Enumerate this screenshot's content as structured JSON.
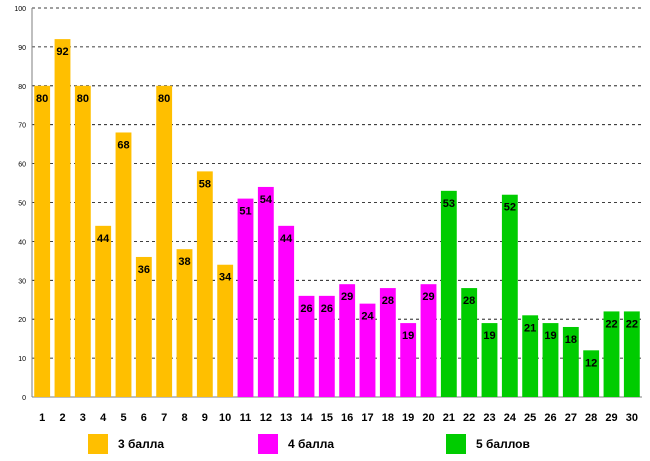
{
  "chart_data": {
    "type": "bar",
    "title": "",
    "xlabel": "",
    "ylabel": "",
    "ylim": [
      0,
      100
    ],
    "yticks": [
      0,
      10,
      20,
      30,
      40,
      50,
      60,
      70,
      80,
      90,
      100
    ],
    "grid": true,
    "categories": [
      "1",
      "2",
      "3",
      "4",
      "5",
      "6",
      "7",
      "8",
      "9",
      "10",
      "11",
      "12",
      "13",
      "14",
      "15",
      "16",
      "17",
      "18",
      "19",
      "20",
      "21",
      "22",
      "23",
      "24",
      "25",
      "26",
      "27",
      "28",
      "29",
      "30"
    ],
    "values": [
      80,
      92,
      80,
      44,
      68,
      36,
      80,
      38,
      58,
      34,
      51,
      54,
      44,
      26,
      26,
      29,
      24,
      28,
      19,
      29,
      53,
      28,
      19,
      52,
      21,
      19,
      18,
      12,
      22,
      22
    ],
    "groups": [
      0,
      0,
      0,
      0,
      0,
      0,
      0,
      0,
      0,
      0,
      1,
      1,
      1,
      1,
      1,
      1,
      1,
      1,
      1,
      1,
      2,
      2,
      2,
      2,
      2,
      2,
      2,
      2,
      2,
      2
    ],
    "legend_position": "bottom",
    "legend": [
      {
        "label": "3 балла",
        "color": "#ffbf00"
      },
      {
        "label": "4 балла",
        "color": "#ff00ff"
      },
      {
        "label": "5 баллов",
        "color": "#00cc00"
      }
    ]
  }
}
